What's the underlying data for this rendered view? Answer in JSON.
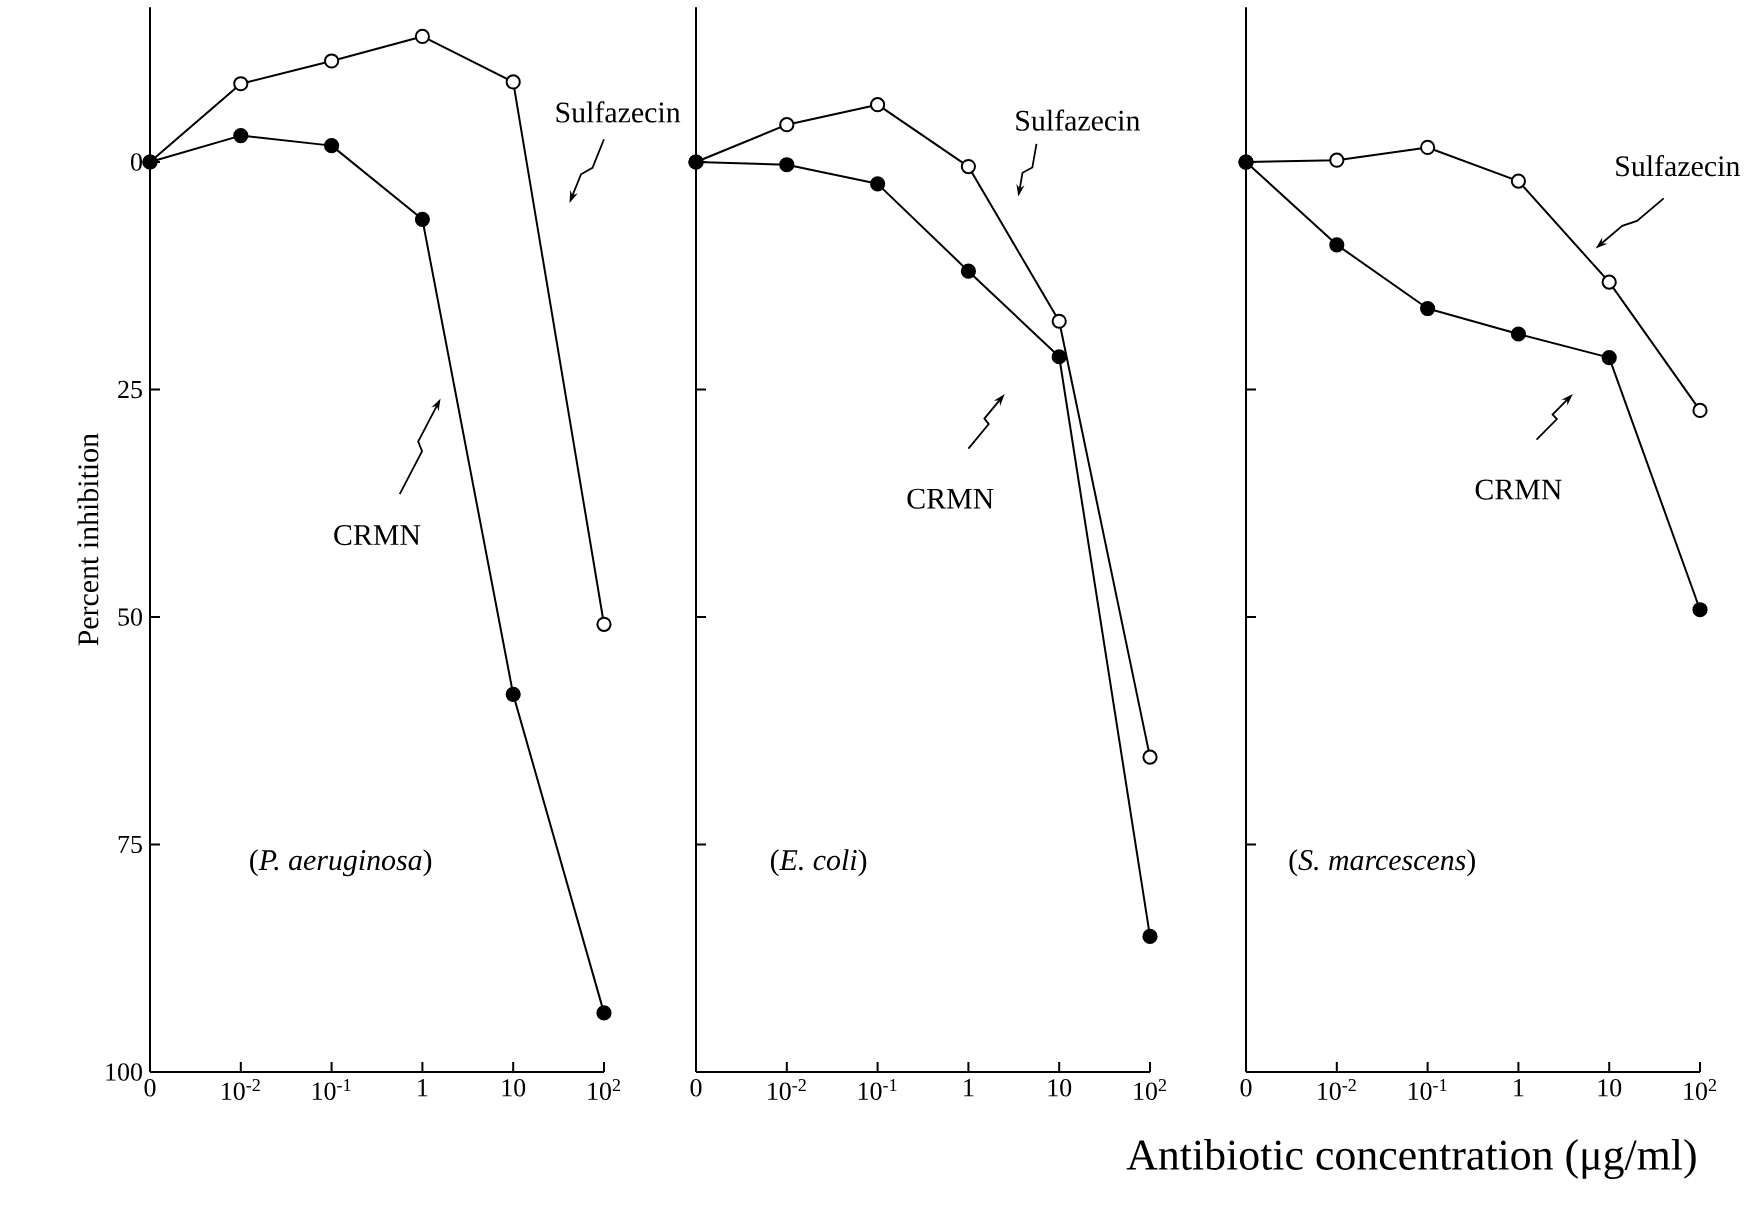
{
  "chart_data": [
    {
      "type": "line",
      "ylabel": "Percent inhibition",
      "categories": [
        "0",
        "10$^{-2}$",
        "10$^{-1}$",
        "1",
        "10",
        "10$^{2}$"
      ],
      "ylim": [
        100,
        -17
      ],
      "yticks": [
        0,
        25,
        50,
        75,
        100
      ],
      "marker": "circle",
      "legend": false,
      "series": [
        {
          "name": "Sulfazecin",
          "color": "#000000",
          "values": [
            0,
            -8.6,
            -11.1,
            -13.8,
            -8.8,
            50.8
          ]
        },
        {
          "name": "CRMN",
          "color": "#000000",
          "values": [
            0,
            -2.9,
            -1.8,
            6.3,
            58.5,
            93.5
          ]
        }
      ],
      "annotations": [
        {
          "text": "(*P. aeruginosa*)"
        }
      ]
    },
    {
      "type": "line",
      "categories": [
        "0",
        "10$^{-2}$",
        "10$^{-1}$",
        "1",
        "10",
        "10$^{2}$"
      ],
      "ylim": [
        100,
        -17
      ],
      "yticks": [
        0,
        25,
        50,
        75,
        100
      ],
      "tick_labels": "x",
      "marker": "circle",
      "legend": false,
      "series": [
        {
          "name": "Sulfazecin",
          "color": "#000000",
          "values": [
            0,
            -4.1,
            -6.3,
            0.5,
            17.5,
            65.4
          ]
        },
        {
          "name": "CRMN",
          "color": "#000000",
          "values": [
            0,
            0.3,
            2.4,
            12.0,
            21.4,
            85.1
          ]
        }
      ],
      "annotations": [
        {
          "text": "(*E. coli*)"
        }
      ]
    },
    {
      "type": "line",
      "xlabel": "Antibiotic concentration  (μg/ml)",
      "categories": [
        "0",
        "10$^{-2}$",
        "10$^{-1}$",
        "1",
        "10",
        "10$^{2}$"
      ],
      "ylim": [
        100,
        -17
      ],
      "yticks": [
        0,
        25,
        50,
        75,
        100
      ],
      "tick_labels": "x",
      "marker": "circle",
      "legend": false,
      "series": [
        {
          "name": "Sulfazecin",
          "color": "#000000",
          "values": [
            0,
            -0.2,
            -1.6,
            2.1,
            13.2,
            27.3
          ]
        },
        {
          "name": "CRMN",
          "color": "#000000",
          "values": [
            0,
            9.1,
            16.1,
            18.9,
            21.5,
            49.2
          ]
        }
      ],
      "annotations": [
        {
          "text": "(*S. marcescens*)"
        }
      ]
    }
  ]
}
